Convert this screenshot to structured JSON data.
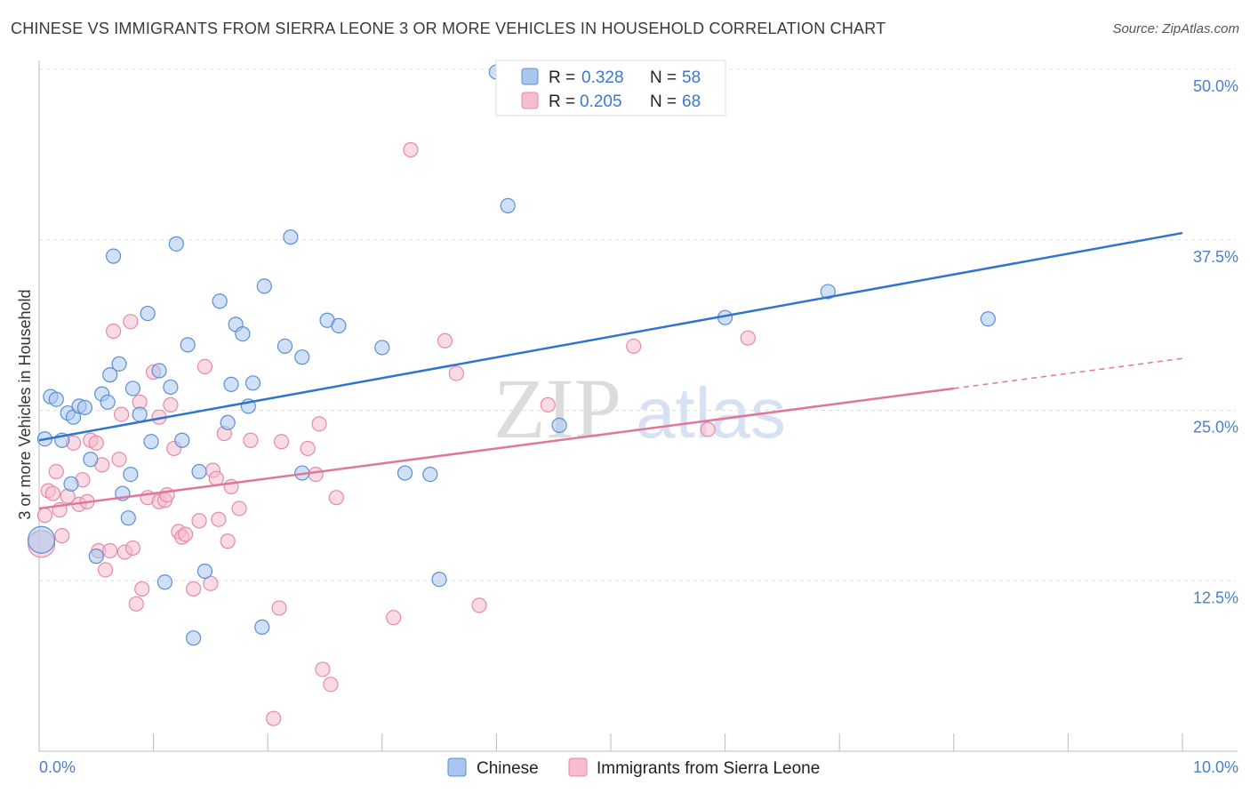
{
  "title": "CHINESE VS IMMIGRANTS FROM SIERRA LEONE 3 OR MORE VEHICLES IN HOUSEHOLD CORRELATION CHART",
  "source": "Source: ZipAtlas.com",
  "watermark": {
    "zip": "ZIP",
    "atlas": "atlas"
  },
  "colors": {
    "chinese_fill": "#a9c6ee",
    "chinese_stroke": "#5a8fd6",
    "chinese_line": "#2f74cf",
    "sl_fill": "#f6bcd0",
    "sl_stroke": "#e58aa8",
    "sl_line": "#e0769c",
    "tick_text": "#4a7fc9",
    "grid": "#dddddd"
  },
  "legend": {
    "rows": [
      {
        "r_label": "R =",
        "r_value": "0.328",
        "n_label": "N =",
        "n_value": "58"
      },
      {
        "r_label": "R =",
        "r_value": "0.205",
        "n_label": "N =",
        "n_value": "68"
      }
    ]
  },
  "chart_data": {
    "type": "scatter",
    "title": "CHINESE VS IMMIGRANTS FROM SIERRA LEONE 3 OR MORE VEHICLES IN HOUSEHOLD CORRELATION CHART",
    "xlabel": "",
    "ylabel": "3 or more Vehicles in Household",
    "xlim": [
      0,
      10
    ],
    "ylim": [
      0,
      50
    ],
    "x_tick_labels": [
      "0.0%",
      "10.0%"
    ],
    "y_ticks": [
      12.5,
      25.0,
      37.5,
      50.0
    ],
    "y_tick_labels": [
      "12.5%",
      "25.0%",
      "37.5%",
      "50.0%"
    ],
    "grid": true,
    "legend_position": "top-center",
    "series": [
      {
        "name": "Chinese",
        "trend": {
          "x": [
            0,
            10
          ],
          "y": [
            22.8,
            38.0
          ]
        },
        "points": [
          [
            0.05,
            22.9
          ],
          [
            0.1,
            26.0
          ],
          [
            0.15,
            25.8
          ],
          [
            0.2,
            22.8
          ],
          [
            0.25,
            24.8
          ],
          [
            0.28,
            19.6
          ],
          [
            0.3,
            24.5
          ],
          [
            0.35,
            25.3
          ],
          [
            0.4,
            25.2
          ],
          [
            0.45,
            21.4
          ],
          [
            0.5,
            14.3
          ],
          [
            0.55,
            26.2
          ],
          [
            0.6,
            25.6
          ],
          [
            0.62,
            27.6
          ],
          [
            0.65,
            36.3
          ],
          [
            0.7,
            28.4
          ],
          [
            0.73,
            18.9
          ],
          [
            0.78,
            17.1
          ],
          [
            0.8,
            20.3
          ],
          [
            0.82,
            26.6
          ],
          [
            0.88,
            24.7
          ],
          [
            0.95,
            32.1
          ],
          [
            0.98,
            22.7
          ],
          [
            1.05,
            27.9
          ],
          [
            1.1,
            12.4
          ],
          [
            1.15,
            26.7
          ],
          [
            1.2,
            37.2
          ],
          [
            1.25,
            22.8
          ],
          [
            1.3,
            29.8
          ],
          [
            1.35,
            8.3
          ],
          [
            1.4,
            20.5
          ],
          [
            1.45,
            13.2
          ],
          [
            1.58,
            33.0
          ],
          [
            1.65,
            24.1
          ],
          [
            1.68,
            26.9
          ],
          [
            1.72,
            31.3
          ],
          [
            1.78,
            30.6
          ],
          [
            1.83,
            25.3
          ],
          [
            1.87,
            27.0
          ],
          [
            1.95,
            9.1
          ],
          [
            1.97,
            34.1
          ],
          [
            2.15,
            29.7
          ],
          [
            2.2,
            37.7
          ],
          [
            2.3,
            28.9
          ],
          [
            2.3,
            20.4
          ],
          [
            2.52,
            31.6
          ],
          [
            2.62,
            31.2
          ],
          [
            3.0,
            29.6
          ],
          [
            3.2,
            20.4
          ],
          [
            3.42,
            20.3
          ],
          [
            3.5,
            12.6
          ],
          [
            4.0,
            49.8
          ],
          [
            4.1,
            40.0
          ],
          [
            4.55,
            23.9
          ],
          [
            6.0,
            31.8
          ],
          [
            6.9,
            33.7
          ],
          [
            8.3,
            31.7
          ],
          [
            0.02,
            15.5
          ]
        ]
      },
      {
        "name": "Immigrants from Sierra Leone",
        "trend": {
          "x": [
            0,
            8.0
          ],
          "y": [
            17.8,
            26.6
          ]
        },
        "trend_dashed": {
          "x": [
            8.0,
            10
          ],
          "y": [
            26.6,
            28.8
          ]
        },
        "points": [
          [
            0.02,
            15.2
          ],
          [
            0.05,
            17.3
          ],
          [
            0.08,
            19.1
          ],
          [
            0.12,
            18.9
          ],
          [
            0.15,
            20.5
          ],
          [
            0.18,
            17.7
          ],
          [
            0.2,
            15.8
          ],
          [
            0.25,
            18.7
          ],
          [
            0.3,
            22.6
          ],
          [
            0.35,
            18.1
          ],
          [
            0.38,
            19.9
          ],
          [
            0.42,
            18.3
          ],
          [
            0.45,
            22.8
          ],
          [
            0.5,
            22.6
          ],
          [
            0.52,
            14.7
          ],
          [
            0.55,
            21.0
          ],
          [
            0.58,
            13.3
          ],
          [
            0.62,
            14.7
          ],
          [
            0.65,
            30.8
          ],
          [
            0.7,
            21.4
          ],
          [
            0.72,
            24.7
          ],
          [
            0.75,
            14.6
          ],
          [
            0.8,
            31.5
          ],
          [
            0.82,
            14.9
          ],
          [
            0.85,
            10.8
          ],
          [
            0.88,
            25.6
          ],
          [
            0.9,
            11.9
          ],
          [
            0.95,
            18.6
          ],
          [
            1.0,
            27.8
          ],
          [
            1.05,
            24.5
          ],
          [
            1.05,
            18.3
          ],
          [
            1.1,
            18.4
          ],
          [
            1.12,
            18.8
          ],
          [
            1.15,
            25.4
          ],
          [
            1.18,
            22.2
          ],
          [
            1.22,
            16.1
          ],
          [
            1.25,
            15.7
          ],
          [
            1.28,
            15.9
          ],
          [
            1.35,
            11.9
          ],
          [
            1.4,
            16.9
          ],
          [
            1.45,
            28.2
          ],
          [
            1.5,
            12.3
          ],
          [
            1.52,
            20.6
          ],
          [
            1.55,
            20.0
          ],
          [
            1.57,
            17.0
          ],
          [
            1.62,
            23.3
          ],
          [
            1.65,
            15.4
          ],
          [
            1.68,
            19.4
          ],
          [
            1.75,
            17.8
          ],
          [
            1.85,
            22.8
          ],
          [
            2.05,
            2.4
          ],
          [
            2.1,
            10.5
          ],
          [
            2.12,
            22.7
          ],
          [
            2.35,
            22.2
          ],
          [
            2.42,
            20.3
          ],
          [
            2.45,
            24.0
          ],
          [
            2.48,
            6.0
          ],
          [
            2.55,
            4.9
          ],
          [
            2.6,
            18.6
          ],
          [
            3.1,
            9.8
          ],
          [
            3.25,
            44.1
          ],
          [
            3.55,
            30.1
          ],
          [
            3.65,
            27.7
          ],
          [
            3.85,
            10.7
          ],
          [
            4.45,
            25.4
          ],
          [
            5.2,
            29.7
          ],
          [
            5.85,
            23.6
          ],
          [
            6.2,
            30.3
          ]
        ]
      }
    ]
  }
}
